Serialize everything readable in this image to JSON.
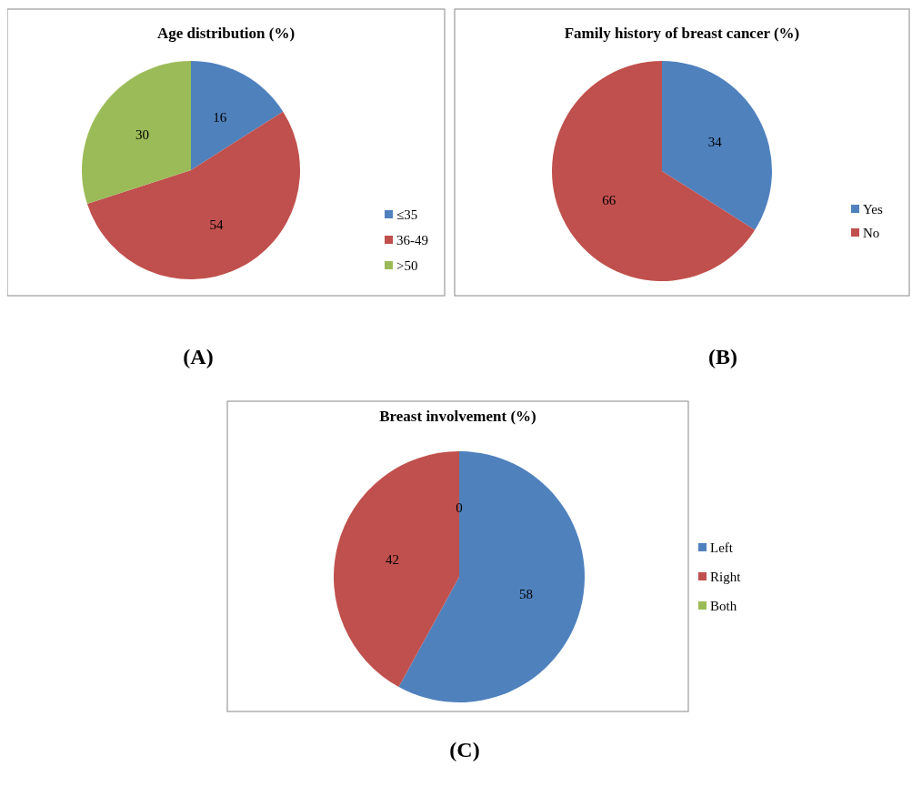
{
  "chart_data": [
    {
      "type": "pie",
      "title": "Age distribution (%)",
      "categories": [
        "≤35",
        "36-49",
        ">50"
      ],
      "values": [
        16,
        54,
        30
      ],
      "colors": [
        "#4f81bd",
        "#c0504d",
        "#9bbb59"
      ],
      "data_labels": true,
      "legend": "right",
      "annotations": [
        "(A)"
      ]
    },
    {
      "type": "pie",
      "title": "Family history of breast cancer (%)",
      "categories": [
        "Yes",
        "No"
      ],
      "values": [
        34,
        66
      ],
      "colors": [
        "#4f81bd",
        "#c0504d"
      ],
      "data_labels": true,
      "legend": "right",
      "annotations": [
        "(B)"
      ]
    },
    {
      "type": "pie",
      "title": "Breast involvement (%)",
      "categories": [
        "Left",
        "Right",
        "Both"
      ],
      "values": [
        58,
        42,
        0
      ],
      "colors": [
        "#4f81bd",
        "#c0504d",
        "#9bbb59"
      ],
      "value_labels": [
        "58",
        "42",
        "0"
      ],
      "legend": "right",
      "annotations": [
        "(C)"
      ]
    }
  ]
}
